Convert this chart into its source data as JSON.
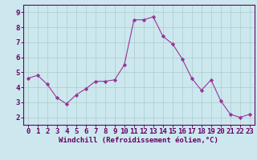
{
  "x": [
    0,
    1,
    2,
    3,
    4,
    5,
    6,
    7,
    8,
    9,
    10,
    11,
    12,
    13,
    14,
    15,
    16,
    17,
    18,
    19,
    20,
    21,
    22,
    23
  ],
  "y": [
    4.6,
    4.8,
    4.2,
    3.3,
    2.9,
    3.5,
    3.9,
    4.4,
    4.4,
    4.5,
    5.5,
    8.5,
    8.5,
    8.7,
    7.4,
    6.9,
    5.9,
    4.6,
    3.8,
    4.5,
    3.1,
    2.2,
    2.0,
    2.2
  ],
  "line_color": "#993399",
  "marker": "D",
  "marker_size": 2.2,
  "background_color": "#cce8ee",
  "grid_color": "#aacccc",
  "xlabel": "Windchill (Refroidissement éolien,°C)",
  "xlim": [
    -0.5,
    23.5
  ],
  "ylim": [
    1.5,
    9.5
  ],
  "yticks": [
    2,
    3,
    4,
    5,
    6,
    7,
    8,
    9
  ],
  "xticks": [
    0,
    1,
    2,
    3,
    4,
    5,
    6,
    7,
    8,
    9,
    10,
    11,
    12,
    13,
    14,
    15,
    16,
    17,
    18,
    19,
    20,
    21,
    22,
    23
  ],
  "xlabel_fontsize": 6.5,
  "tick_fontsize": 6.5,
  "spine_color": "#660066",
  "tick_color": "#660066",
  "label_color": "#660066"
}
